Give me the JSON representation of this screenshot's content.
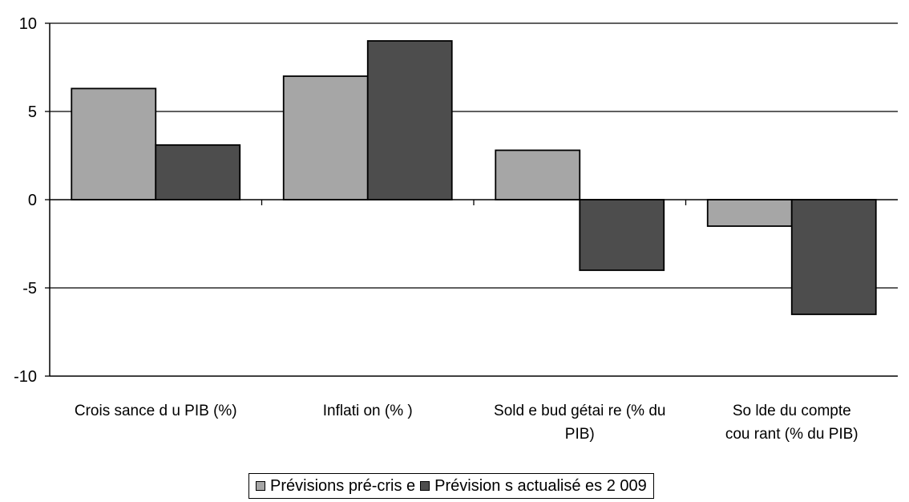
{
  "chart_data": {
    "type": "bar",
    "categories": [
      [
        "Crois sance d u PIB (%)"
      ],
      [
        "Inflati on (% )"
      ],
      [
        "Sold e bud gétai re (% du",
        "PIB)"
      ],
      [
        "So lde du compte",
        "cou rant (% du PIB)"
      ]
    ],
    "series": [
      {
        "name": "Prévisions pré-cris e",
        "color": "#a6a6a6",
        "values": [
          6.3,
          7.0,
          2.8,
          -1.5
        ]
      },
      {
        "name": "Prévision s actualisé es 2 009",
        "color": "#4d4d4d",
        "values": [
          3.1,
          9.0,
          -4.0,
          -6.5
        ]
      }
    ],
    "ylim": [
      -10,
      10
    ],
    "yticks": [
      10,
      5,
      0,
      -5,
      -10
    ],
    "grid": true,
    "legend_position": "bottom",
    "title": "",
    "xlabel": "",
    "ylabel": ""
  }
}
